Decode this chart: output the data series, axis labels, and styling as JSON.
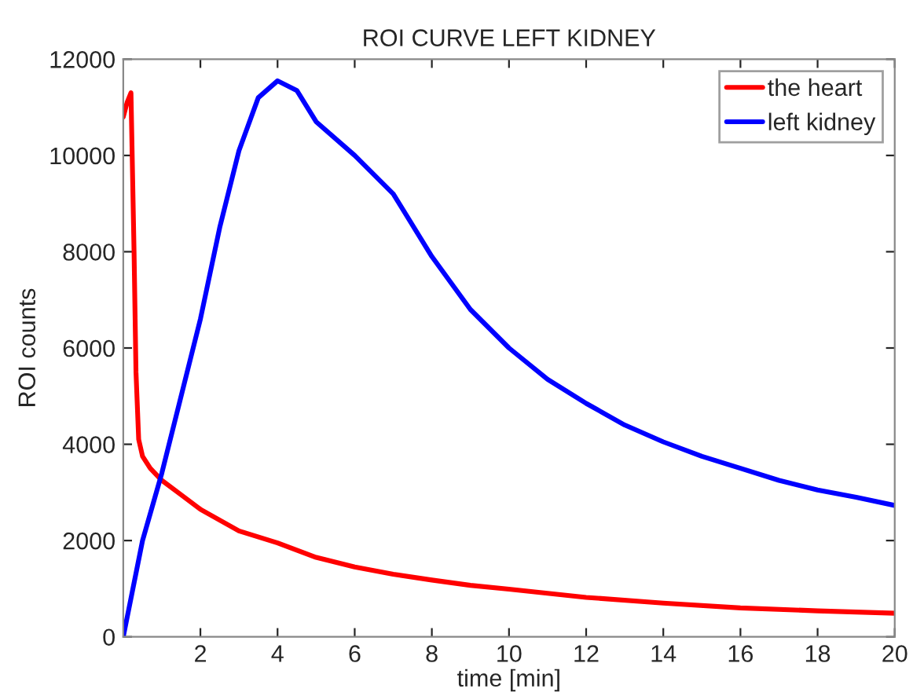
{
  "chart_data": {
    "type": "line",
    "title": "ROI CURVE LEFT KIDNEY",
    "xlabel": "time [min]",
    "ylabel": "ROI counts",
    "xlim": [
      0,
      20
    ],
    "ylim": [
      0,
      12000
    ],
    "xticks": [
      2,
      4,
      6,
      8,
      10,
      12,
      14,
      16,
      18,
      20
    ],
    "yticks": [
      0,
      2000,
      4000,
      6000,
      8000,
      10000,
      12000
    ],
    "grid": false,
    "legend": "top right",
    "marker": "none",
    "line_style": "solid",
    "series": [
      {
        "name": "the heart",
        "color": "#ff0000",
        "x": [
          0,
          0.1,
          0.2,
          0.28,
          0.33,
          0.4,
          0.5,
          0.7,
          1,
          1.5,
          2,
          3,
          4,
          5,
          6,
          7,
          8,
          9,
          10,
          12,
          14,
          16,
          18,
          20
        ],
        "values": [
          10800,
          11100,
          11300,
          8000,
          5500,
          4100,
          3750,
          3500,
          3250,
          2950,
          2650,
          2200,
          1950,
          1650,
          1450,
          1300,
          1180,
          1070,
          990,
          820,
          700,
          600,
          540,
          490
        ]
      },
      {
        "name": "left kidney",
        "color": "#0000ff",
        "x": [
          0,
          0.5,
          1,
          1.5,
          2,
          2.5,
          3,
          3.5,
          4,
          4.5,
          5,
          6,
          7,
          8,
          9,
          10,
          11,
          12,
          13,
          14,
          15,
          16,
          17,
          18,
          19,
          20
        ],
        "values": [
          0,
          2000,
          3400,
          5000,
          6600,
          8500,
          10100,
          11200,
          11550,
          11350,
          10700,
          10000,
          9200,
          7900,
          6800,
          6000,
          5350,
          4850,
          4400,
          4050,
          3750,
          3500,
          3250,
          3050,
          2900,
          2730
        ]
      }
    ]
  }
}
